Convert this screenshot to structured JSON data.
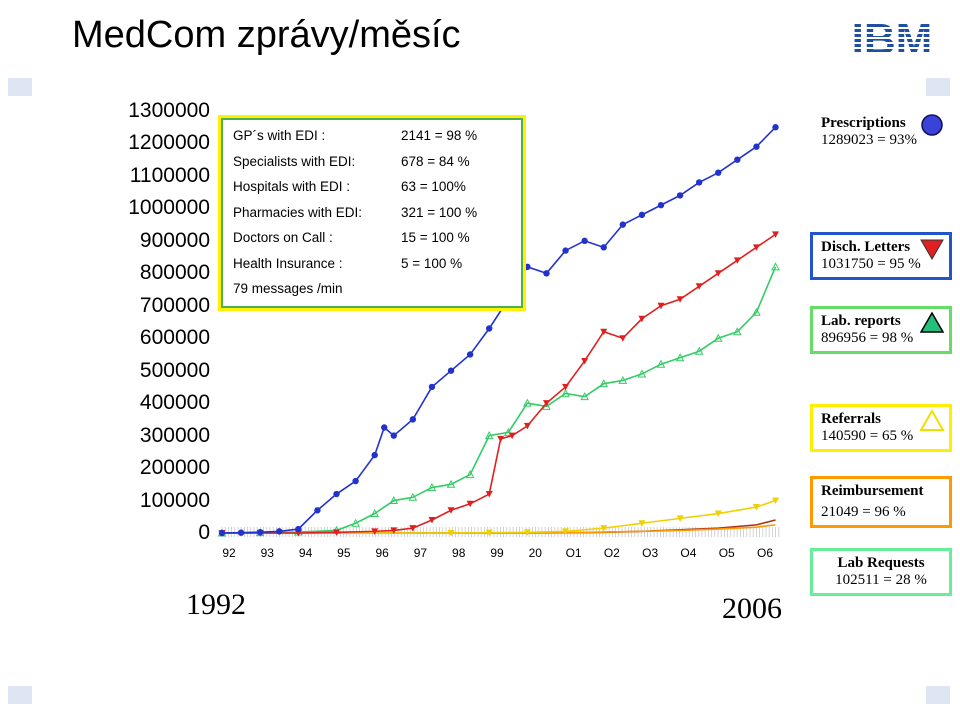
{
  "slide": {
    "title": "MedCom zprávy/měsíc",
    "logo_text": "IBM",
    "year_start": "1992",
    "year_end": "2006"
  },
  "infobox": {
    "rows": [
      {
        "label": "GP´s with  EDI :",
        "value": "2141 = 98 %"
      },
      {
        "label": "Specialists   with  EDI:",
        "value": "678 = 84 %"
      },
      {
        "label": "Hospitals   with  EDI :",
        "value": "63 =  100%"
      },
      {
        "label": "Pharmacies with      EDI:",
        "value": "321 = 100 %"
      },
      {
        "label": "Doctors on   Call :",
        "value": "15 = 100 %"
      },
      {
        "label": "Health Insurance   :",
        "value": "5 =  100 %"
      },
      {
        "label": "79 messages  /min",
        "value": ""
      }
    ]
  },
  "legend": [
    {
      "name": "Prescriptions",
      "detail": "1289023 = 93%",
      "border": "none",
      "icon": "circle",
      "color": "#2233cc"
    },
    {
      "name": "Disch. Letters",
      "detail": "1031750 = 95 %",
      "border": "#2255cc",
      "icon": "triangle-down",
      "color": "#e02020"
    },
    {
      "name": "Lab. reports",
      "detail": "896956 = 98 %",
      "border": "#66dd66",
      "icon": "triangle-up",
      "color": "#33cc66"
    },
    {
      "name": "Referrals",
      "detail": "140590 = 65 %",
      "border": "#ffee00",
      "icon": "triangle-up-outline",
      "color": "#ffee00"
    },
    {
      "name": "Reimbursement",
      "detail": "21049 = 96 %",
      "border": "#ff9900",
      "icon": "none",
      "color": "#ff9900"
    },
    {
      "name": "Lab Requests",
      "detail": "102511 = 28 %",
      "border": "#66ee99",
      "icon": "none",
      "color": "#66ee99"
    }
  ],
  "chart_data": {
    "type": "line",
    "title": "MedCom zprávy/měsíc",
    "xlabel": "",
    "ylabel": "",
    "x_tick_labels": [
      "92",
      "93",
      "94",
      "95",
      "96",
      "97",
      "98",
      "99",
      "20",
      "O1",
      "O2",
      "O3",
      "O4",
      "O5",
      "O6"
    ],
    "y_tick_labels": [
      "0",
      "100000",
      "200000",
      "300000",
      "400000",
      "500000",
      "600000",
      "700000",
      "800000",
      "900000",
      "1000000",
      "1100000",
      "1200000",
      "1300000"
    ],
    "ylim": [
      0,
      1300000
    ],
    "xlim": [
      1992.0,
      2006.67
    ],
    "grid": false,
    "series": [
      {
        "name": "Prescriptions",
        "color": "#2233cc",
        "marker": "circle",
        "x": [
          1992.0,
          1992.5,
          1993.0,
          1993.5,
          1994.0,
          1994.5,
          1995.0,
          1995.5,
          1996.0,
          1996.25,
          1996.5,
          1997.0,
          1997.5,
          1998.0,
          1998.5,
          1999.0,
          1999.5,
          2000.0,
          2000.5,
          2001.0,
          2001.5,
          2002.0,
          2002.5,
          2003.0,
          2003.5,
          2004.0,
          2004.5,
          2005.0,
          2005.5,
          2006.0,
          2006.5
        ],
        "y": [
          0,
          1000,
          2500,
          5000,
          12000,
          70000,
          120000,
          160000,
          240000,
          325000,
          300000,
          350000,
          450000,
          500000,
          550000,
          630000,
          720000,
          820000,
          800000,
          870000,
          900000,
          880000,
          950000,
          980000,
          1010000,
          1040000,
          1080000,
          1110000,
          1150000,
          1190000,
          1250000
        ]
      },
      {
        "name": "Disch. Letters",
        "color": "#e02020",
        "marker": "triangle-down",
        "x": [
          1992.0,
          1993.0,
          1994.0,
          1995.0,
          1996.0,
          1996.5,
          1997.0,
          1997.5,
          1998.0,
          1998.5,
          1999.0,
          1999.3,
          1999.6,
          2000.0,
          2000.5,
          2001.0,
          2001.5,
          2002.0,
          2002.5,
          2003.0,
          2003.5,
          2004.0,
          2004.5,
          2005.0,
          2005.5,
          2006.0,
          2006.5
        ],
        "y": [
          0,
          0,
          0,
          2000,
          5000,
          8000,
          15000,
          40000,
          70000,
          90000,
          120000,
          290000,
          300000,
          330000,
          400000,
          450000,
          530000,
          620000,
          600000,
          660000,
          700000,
          720000,
          760000,
          800000,
          840000,
          880000,
          920000
        ]
      },
      {
        "name": "Lab. reports",
        "color": "#33cc66",
        "marker": "triangle-up",
        "x": [
          1992.0,
          1993.0,
          1994.0,
          1995.0,
          1995.5,
          1996.0,
          1996.5,
          1997.0,
          1997.5,
          1998.0,
          1998.5,
          1999.0,
          1999.5,
          2000.0,
          2000.5,
          2001.0,
          2001.5,
          2002.0,
          2002.5,
          2003.0,
          2003.5,
          2004.0,
          2004.5,
          2005.0,
          2005.5,
          2006.0,
          2006.5
        ],
        "y": [
          0,
          1000,
          3000,
          8000,
          30000,
          60000,
          100000,
          110000,
          140000,
          150000,
          180000,
          300000,
          310000,
          400000,
          390000,
          430000,
          420000,
          460000,
          470000,
          490000,
          520000,
          540000,
          560000,
          600000,
          620000,
          680000,
          820000
        ]
      },
      {
        "name": "Referrals",
        "color": "#f0d000",
        "marker": "triangle-down",
        "x": [
          1992.0,
          1998.0,
          1999.0,
          2000.0,
          2001.0,
          2002.0,
          2003.0,
          2004.0,
          2005.0,
          2006.0,
          2006.5
        ],
        "y": [
          0,
          0,
          1000,
          2000,
          5000,
          15000,
          30000,
          45000,
          60000,
          80000,
          100000
        ]
      },
      {
        "name": "Reimbursement",
        "color": "#ff9900",
        "marker": "line",
        "x": [
          1992.0,
          2000.0,
          2001.0,
          2002.0,
          2003.0,
          2004.0,
          2005.0,
          2006.0,
          2006.5
        ],
        "y": [
          0,
          0,
          1000,
          3000,
          5000,
          8000,
          12000,
          18000,
          25000
        ]
      },
      {
        "name": "Lab Requests",
        "color": "#aa3311",
        "marker": "line",
        "x": [
          1992.0,
          2000.0,
          2001.0,
          2002.0,
          2003.0,
          2004.0,
          2005.0,
          2006.0,
          2006.5
        ],
        "y": [
          0,
          0,
          500,
          2000,
          5000,
          10000,
          15000,
          25000,
          40000
        ]
      }
    ]
  }
}
